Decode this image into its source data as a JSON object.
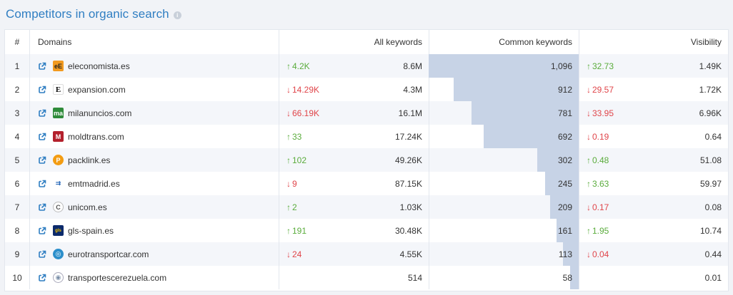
{
  "title": "Competitors in organic search",
  "info_icon": "info-icon",
  "colors": {
    "title": "#2f7ec2",
    "up": "#5aac3c",
    "down": "#e0454a",
    "bar": "#c7d3e6"
  },
  "columns": {
    "num": "#",
    "domains": "Domains",
    "all_keywords": "All keywords",
    "common_keywords": "Common keywords",
    "visibility": "Visibility"
  },
  "rows": [
    {
      "num": "1",
      "domain": "eleconomista.es",
      "favicon": "eleconomista-favicon",
      "all_change": "4.2K",
      "all_dir": "up",
      "all": "8.6M",
      "common": "1,096",
      "common_value": 1096,
      "vis_change": "32.73",
      "vis_dir": "up",
      "vis": "1.49K"
    },
    {
      "num": "2",
      "domain": "expansion.com",
      "favicon": "expansion-favicon",
      "all_change": "14.29K",
      "all_dir": "down",
      "all": "4.3M",
      "common": "912",
      "common_value": 912,
      "vis_change": "29.57",
      "vis_dir": "down",
      "vis": "1.72K"
    },
    {
      "num": "3",
      "domain": "milanuncios.com",
      "favicon": "milanuncios-favicon",
      "all_change": "66.19K",
      "all_dir": "down",
      "all": "16.1M",
      "common": "781",
      "common_value": 781,
      "vis_change": "33.95",
      "vis_dir": "down",
      "vis": "6.96K"
    },
    {
      "num": "4",
      "domain": "moldtrans.com",
      "favicon": "moldtrans-favicon",
      "all_change": "33",
      "all_dir": "up",
      "all": "17.24K",
      "common": "692",
      "common_value": 692,
      "vis_change": "0.19",
      "vis_dir": "down",
      "vis": "0.64"
    },
    {
      "num": "5",
      "domain": "packlink.es",
      "favicon": "packlink-favicon",
      "all_change": "102",
      "all_dir": "up",
      "all": "49.26K",
      "common": "302",
      "common_value": 302,
      "vis_change": "0.48",
      "vis_dir": "up",
      "vis": "51.08"
    },
    {
      "num": "6",
      "domain": "emtmadrid.es",
      "favicon": "emtmadrid-favicon",
      "all_change": "9",
      "all_dir": "down",
      "all": "87.15K",
      "common": "245",
      "common_value": 245,
      "vis_change": "3.63",
      "vis_dir": "up",
      "vis": "59.97"
    },
    {
      "num": "7",
      "domain": "unicom.es",
      "favicon": "unicom-favicon",
      "all_change": "2",
      "all_dir": "up",
      "all": "1.03K",
      "common": "209",
      "common_value": 209,
      "vis_change": "0.17",
      "vis_dir": "down",
      "vis": "0.08"
    },
    {
      "num": "8",
      "domain": "gls-spain.es",
      "favicon": "gls-favicon",
      "all_change": "191",
      "all_dir": "up",
      "all": "30.48K",
      "common": "161",
      "common_value": 161,
      "vis_change": "1.95",
      "vis_dir": "up",
      "vis": "10.74"
    },
    {
      "num": "9",
      "domain": "eurotransportcar.com",
      "favicon": "eurotransportcar-favicon",
      "all_change": "24",
      "all_dir": "down",
      "all": "4.55K",
      "common": "113",
      "common_value": 113,
      "vis_change": "0.04",
      "vis_dir": "down",
      "vis": "0.44"
    },
    {
      "num": "10",
      "domain": "transportescerezuela.com",
      "favicon": "cerezuela-favicon",
      "all_change": "",
      "all_dir": "",
      "all": "514",
      "common": "58",
      "common_value": 58,
      "vis_change": "",
      "vis_dir": "",
      "vis": "0.01"
    }
  ]
}
